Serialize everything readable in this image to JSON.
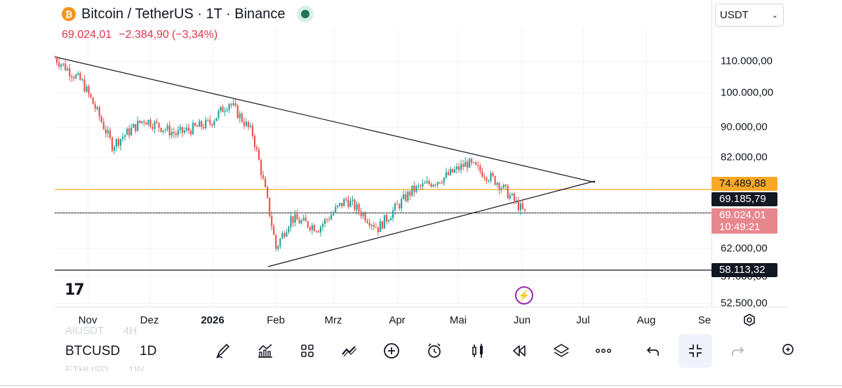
{
  "header": {
    "coin_glyph": "₿",
    "title": "Bitcoin / TetherUS · 1T · Binance",
    "price": "69.024,01",
    "change": "−2.384,90",
    "change_pct": "(−3,34%)"
  },
  "currency_select": {
    "value": "USDT"
  },
  "price_axis": {
    "ticks": [
      "110.000,00",
      "100.000,00",
      "90.000,00",
      "82.000,00",
      "62.000,00",
      "57.000,00",
      "52.500,00"
    ],
    "tag_orange": "74.489,88",
    "tag_black_top": "69.185,79",
    "tag_red_price": "69.024,01",
    "tag_red_countdown": "10:49:21",
    "tag_black_bottom": "58.113,32"
  },
  "time_axis": {
    "labels": [
      "Nov",
      "Dez",
      "2026",
      "Feb",
      "Mrz",
      "Apr",
      "Mai",
      "Jun",
      "Jul",
      "Aug",
      "Se"
    ]
  },
  "colors": {
    "up": "#26a69a",
    "down": "#ef5350",
    "orange_line": "#f9a825",
    "trendline": "#131722",
    "accent_purple": "#9c27b0"
  },
  "bottom_bar": {
    "faded_top_symbol": "AIUSDT",
    "faded_top_tf": "4H",
    "symbol": "BTCUSD",
    "timeframe": "1D",
    "faded_bottom_symbol": "ETHUSD",
    "faded_bottom_tf": "1W",
    "icons": [
      "draw-icon",
      "indicators-icon",
      "layouts-icon",
      "trend-icon",
      "add-icon",
      "alert-icon",
      "candles-icon",
      "replay-icon",
      "layers-icon",
      "more-icon",
      "undo-icon",
      "collapse-icon",
      "redo-icon",
      "profile-icon"
    ]
  },
  "chart_data": {
    "type": "candlestick",
    "title": "Bitcoin / TetherUS · 1T · Binance",
    "xlabel": "",
    "ylabel": "",
    "x_range": [
      "2025-10-24",
      "2026-06-02"
    ],
    "ylim": [
      52000,
      118000
    ],
    "y_scale": "log",
    "grid": true,
    "price_path_approx": [
      {
        "date": "2025-10-24",
        "close": 111000
      },
      {
        "date": "2025-11-06",
        "close": 103000
      },
      {
        "date": "2025-11-20",
        "close": 85000
      },
      {
        "date": "2025-12-05",
        "close": 92000
      },
      {
        "date": "2025-12-20",
        "close": 88000
      },
      {
        "date": "2026-01-05",
        "close": 91000
      },
      {
        "date": "2026-01-14",
        "close": 97000
      },
      {
        "date": "2026-01-25",
        "close": 88000
      },
      {
        "date": "2026-02-05",
        "close": 62000
      },
      {
        "date": "2026-02-12",
        "close": 68000
      },
      {
        "date": "2026-02-25",
        "close": 66000
      },
      {
        "date": "2026-03-10",
        "close": 72000
      },
      {
        "date": "2026-03-25",
        "close": 66000
      },
      {
        "date": "2026-04-10",
        "close": 74000
      },
      {
        "date": "2026-04-25",
        "close": 77000
      },
      {
        "date": "2026-05-06",
        "close": 80500
      },
      {
        "date": "2026-05-20",
        "close": 76000
      },
      {
        "date": "2026-06-02",
        "close": 69024
      }
    ],
    "lines": {
      "orange_level": 74489.88,
      "black_level_top": 69185.79,
      "black_level_bottom": 58113.32
    }
  }
}
